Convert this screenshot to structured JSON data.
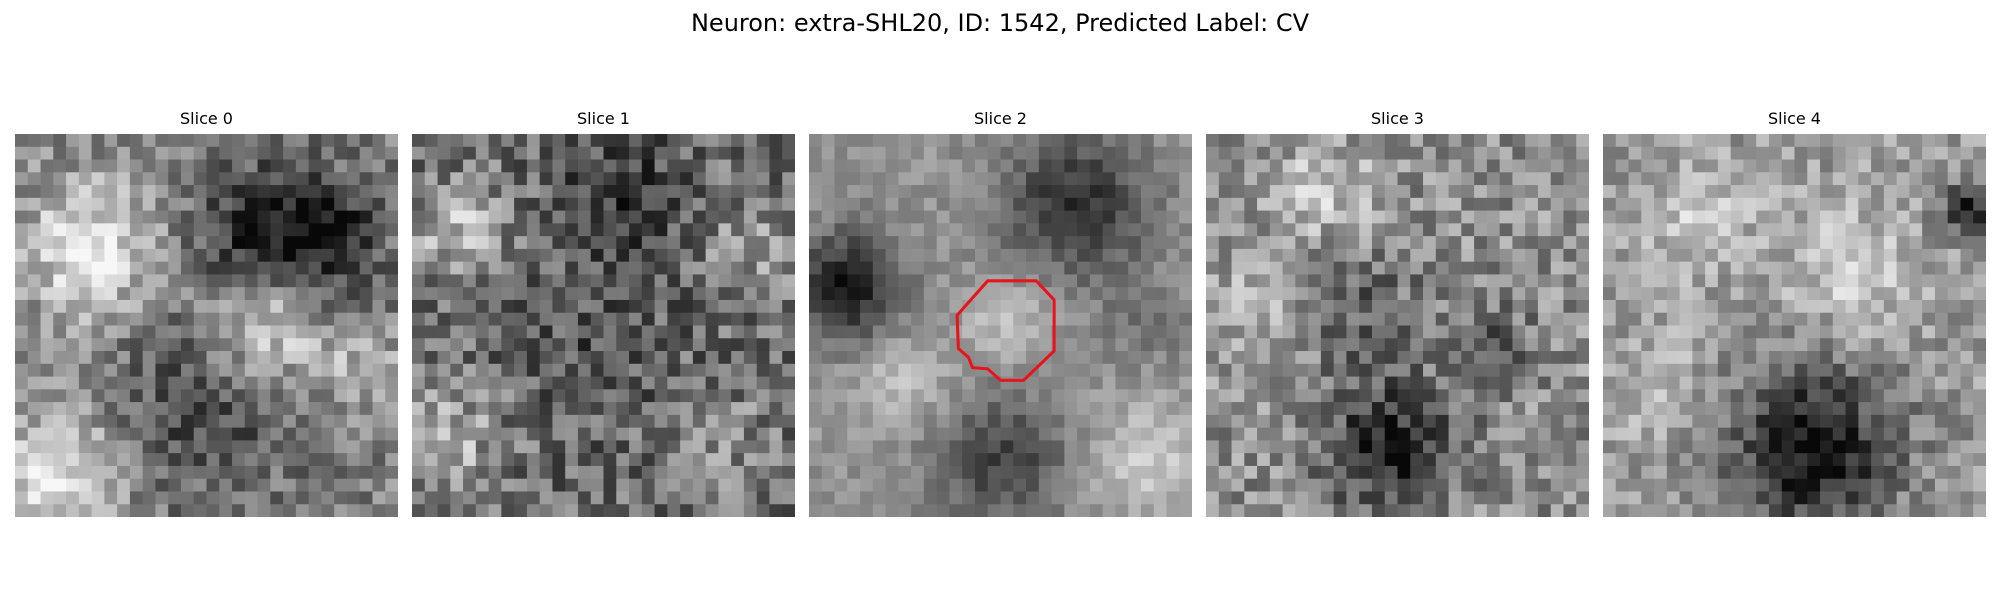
{
  "figure": {
    "title": "Neuron: extra-SHL20, ID: 1542, Predicted Label: CV"
  },
  "slices": [
    {
      "title": "Slice 0"
    },
    {
      "title": "Slice 1"
    },
    {
      "title": "Slice 2"
    },
    {
      "title": "Slice 3"
    },
    {
      "title": "Slice 4"
    }
  ],
  "roi": {
    "slice_index": 2,
    "color": "#e8141c"
  }
}
